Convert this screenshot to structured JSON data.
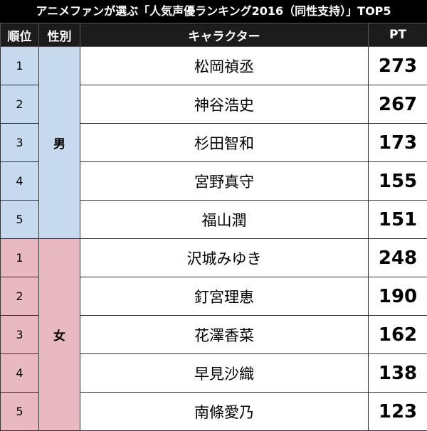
{
  "title": "アニメファンが選ぶ「人気声優ランキング2016（同性支持）」TOP5",
  "headers": {
    "rank": "順位",
    "gender": "性別",
    "character": "キャラクター",
    "pt": "PT"
  },
  "groups": {
    "male": "男",
    "female": "女"
  },
  "colors": {
    "header_bg": "#1c1c1c",
    "male_bg": "#c7d9ee",
    "female_bg": "#e8b9bf"
  },
  "rows": [
    {
      "rank": "1",
      "name": "松岡禎丞",
      "pt": "273"
    },
    {
      "rank": "2",
      "name": "神谷浩史",
      "pt": "267"
    },
    {
      "rank": "3",
      "name": "杉田智和",
      "pt": "173"
    },
    {
      "rank": "4",
      "name": "宮野真守",
      "pt": "155"
    },
    {
      "rank": "5",
      "name": "福山潤",
      "pt": "151"
    },
    {
      "rank": "1",
      "name": "沢城みゆき",
      "pt": "248"
    },
    {
      "rank": "2",
      "name": "釘宮理恵",
      "pt": "190"
    },
    {
      "rank": "3",
      "name": "花澤香菜",
      "pt": "162"
    },
    {
      "rank": "4",
      "name": "早見沙織",
      "pt": "138"
    },
    {
      "rank": "5",
      "name": "南條愛乃",
      "pt": "123"
    }
  ]
}
